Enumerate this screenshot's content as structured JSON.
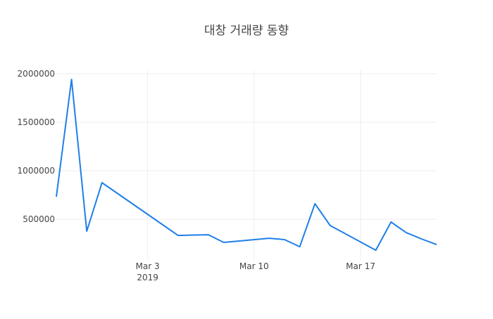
{
  "chart_data": {
    "type": "line",
    "title": "대창 거래량 동향",
    "xlabel": "",
    "ylabel": "",
    "x": [
      "2019-02-25",
      "2019-02-26",
      "2019-02-27",
      "2019-02-28",
      "2019-03-04",
      "2019-03-05",
      "2019-03-06",
      "2019-03-07",
      "2019-03-08",
      "2019-03-11",
      "2019-03-12",
      "2019-03-13",
      "2019-03-14",
      "2019-03-15",
      "2019-03-18",
      "2019-03-19",
      "2019-03-20",
      "2019-03-21",
      "2019-03-22"
    ],
    "series": [
      {
        "name": "거래량",
        "color": "#1f7fe8",
        "values": [
          732000,
          1942000,
          377000,
          877000,
          442000,
          333000,
          337000,
          340000,
          261000,
          304000,
          290000,
          217000,
          660000,
          435000,
          181000,
          471000,
          362000,
          297000,
          239000
        ]
      }
    ],
    "xlim": [
      "2019-02-25",
      "2019-03-22"
    ],
    "ylim": [
      80000,
      2036000
    ],
    "yticks": [
      500000,
      1000000,
      1500000,
      2000000
    ],
    "ytick_labels": [
      "500000",
      "1000000",
      "1500000",
      "2000000"
    ],
    "xticks": [
      "2019-03-03",
      "2019-03-10",
      "2019-03-17"
    ],
    "xtick_labels": [
      "Mar 3",
      "Mar 10",
      "Mar 17"
    ],
    "xtick_year": "2019",
    "grid": true,
    "legend": "none"
  }
}
